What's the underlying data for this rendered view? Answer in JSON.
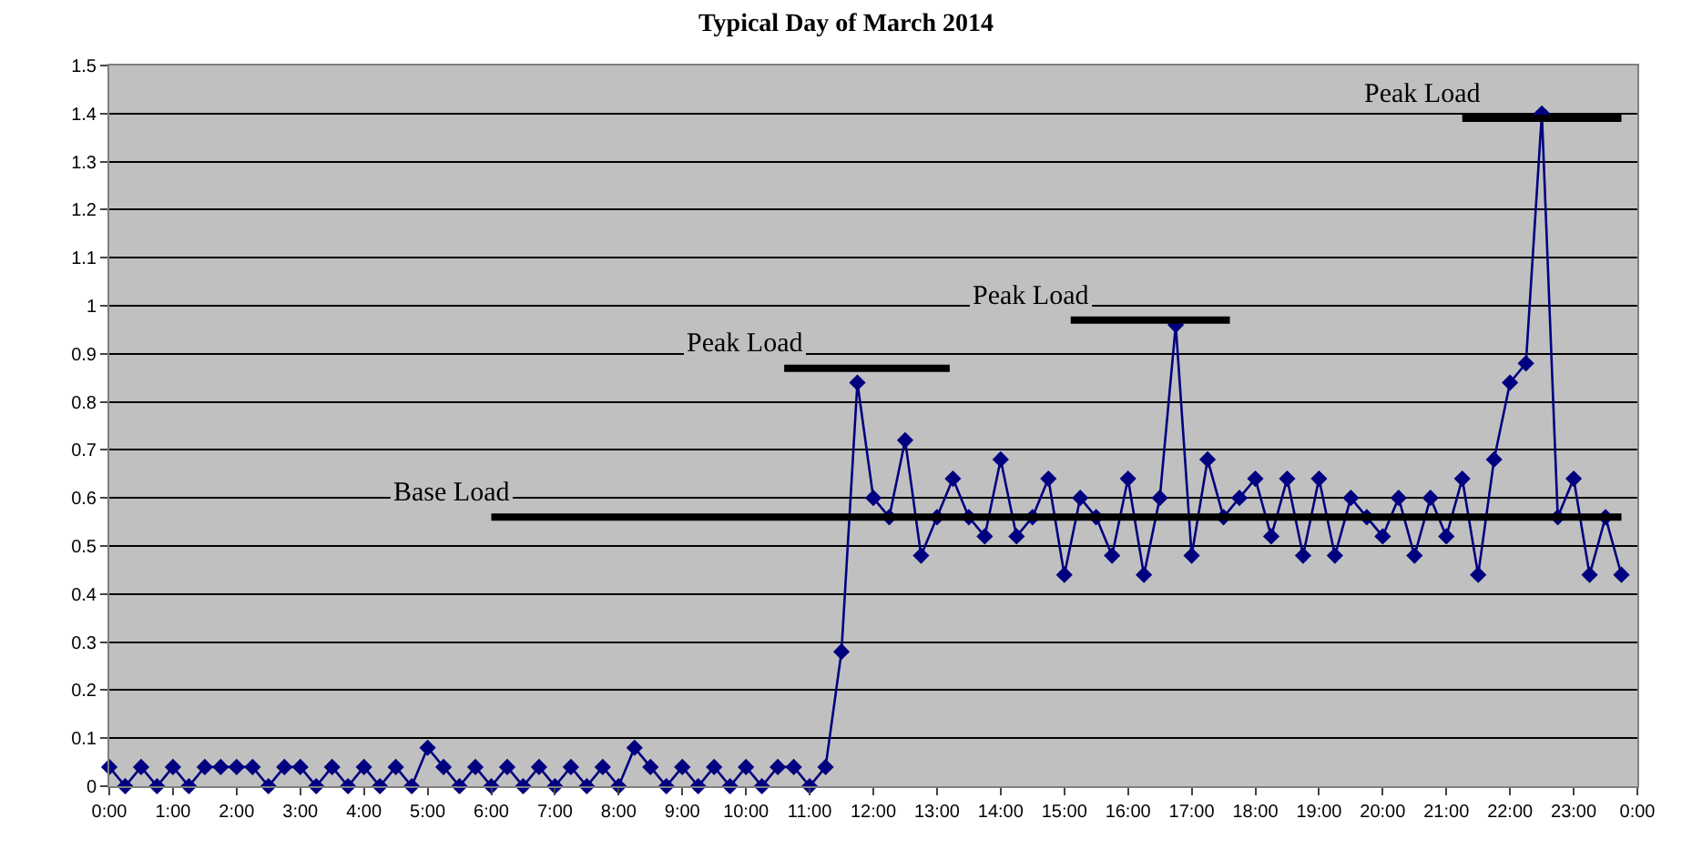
{
  "chart_data": {
    "type": "line",
    "title": "Typical Day of March 2014",
    "xlim": [
      0,
      24
    ],
    "ylim": [
      0,
      1.5
    ],
    "xticks": [
      {
        "value": 0,
        "label": "0:00"
      },
      {
        "value": 1,
        "label": "1:00"
      },
      {
        "value": 2,
        "label": "2:00"
      },
      {
        "value": 3,
        "label": "3:00"
      },
      {
        "value": 4,
        "label": "4:00"
      },
      {
        "value": 5,
        "label": "5:00"
      },
      {
        "value": 6,
        "label": "6:00"
      },
      {
        "value": 7,
        "label": "7:00"
      },
      {
        "value": 8,
        "label": "8:00"
      },
      {
        "value": 9,
        "label": "9:00"
      },
      {
        "value": 10,
        "label": "10:00"
      },
      {
        "value": 11,
        "label": "11:00"
      },
      {
        "value": 12,
        "label": "12:00"
      },
      {
        "value": 13,
        "label": "13:00"
      },
      {
        "value": 14,
        "label": "14:00"
      },
      {
        "value": 15,
        "label": "15:00"
      },
      {
        "value": 16,
        "label": "16:00"
      },
      {
        "value": 17,
        "label": "17:00"
      },
      {
        "value": 18,
        "label": "18:00"
      },
      {
        "value": 19,
        "label": "19:00"
      },
      {
        "value": 20,
        "label": "20:00"
      },
      {
        "value": 21,
        "label": "21:00"
      },
      {
        "value": 22,
        "label": "22:00"
      },
      {
        "value": 23,
        "label": "23:00"
      },
      {
        "value": 24,
        "label": "0:00"
      }
    ],
    "yticks": [
      0,
      0.1,
      0.2,
      0.3,
      0.4,
      0.5,
      0.6,
      0.7,
      0.8,
      0.9,
      1,
      1.1,
      1.2,
      1.3,
      1.4,
      1.5
    ],
    "grid": "y",
    "marker": "diamond",
    "line_style": "solid",
    "series": [
      {
        "color": "#000080",
        "x": [
          0,
          0.25,
          0.5,
          0.75,
          1,
          1.25,
          1.5,
          1.75,
          2,
          2.25,
          2.5,
          2.75,
          3,
          3.25,
          3.5,
          3.75,
          4,
          4.25,
          4.5,
          4.75,
          5,
          5.25,
          5.5,
          5.75,
          6,
          6.25,
          6.5,
          6.75,
          7,
          7.25,
          7.5,
          7.75,
          8,
          8.25,
          8.5,
          8.75,
          9,
          9.25,
          9.5,
          9.75,
          10,
          10.25,
          10.5,
          10.75,
          11,
          11.25,
          11.5,
          11.75,
          12,
          12.25,
          12.5,
          12.75,
          13,
          13.25,
          13.5,
          13.75,
          14,
          14.25,
          14.5,
          14.75,
          15,
          15.25,
          15.5,
          15.75,
          16,
          16.25,
          16.5,
          16.75,
          17,
          17.25,
          17.5,
          17.75,
          18,
          18.25,
          18.5,
          18.75,
          19,
          19.25,
          19.5,
          19.75,
          20,
          20.25,
          20.5,
          20.75,
          21,
          21.25,
          21.5,
          21.75,
          22,
          22.25,
          22.5,
          22.75,
          23,
          23.25,
          23.5,
          23.75
        ],
        "values": [
          0.04,
          0,
          0.04,
          0,
          0.04,
          0,
          0.04,
          0.04,
          0.04,
          0.04,
          0,
          0.04,
          0.04,
          0,
          0.04,
          0,
          0.04,
          0,
          0.04,
          0,
          0.08,
          0.04,
          0,
          0.04,
          0,
          0.04,
          0,
          0.04,
          0,
          0.04,
          0,
          0.04,
          0,
          0.08,
          0.04,
          0,
          0.04,
          0,
          0.04,
          0,
          0.04,
          0,
          0.04,
          0.04,
          0,
          0.04,
          0.28,
          0.84,
          0.6,
          0.56,
          0.72,
          0.48,
          0.56,
          0.64,
          0.56,
          0.52,
          0.68,
          0.52,
          0.56,
          0.64,
          0.44,
          0.6,
          0.56,
          0.48,
          0.64,
          0.44,
          0.6,
          0.96,
          0.48,
          0.68,
          0.56,
          0.6,
          0.64,
          0.52,
          0.64,
          0.48,
          0.64,
          0.48,
          0.6,
          0.56,
          0.52,
          0.6,
          0.48,
          0.6,
          0.52,
          0.64,
          0.44,
          0.68,
          0.84,
          0.88,
          1.4,
          0.56,
          0.64,
          0.44,
          0.56,
          0.44
        ]
      },
      {
        "type": "line",
        "marker": "none",
        "color": "#000000",
        "x": [
          6,
          23.75
        ],
        "values": [
          0.56,
          0.56
        ]
      },
      {
        "type": "line",
        "marker": "none",
        "color": "#000000",
        "x": [
          10.6,
          13.2
        ],
        "values": [
          0.87,
          0.87
        ]
      },
      {
        "type": "line",
        "marker": "none",
        "color": "#000000",
        "x": [
          15.1,
          17.6
        ],
        "values": [
          0.97,
          0.97
        ]
      },
      {
        "type": "line",
        "marker": "none",
        "color": "#000000",
        "x": [
          21.25,
          23.75
        ],
        "values": [
          1.39,
          1.39
        ]
      }
    ],
    "annotations": [
      {
        "text": "Base Load",
        "x": 6,
        "y": 0.56
      },
      {
        "text": "Peak Load",
        "x": 10.6,
        "y": 0.87
      },
      {
        "text": "Peak Load",
        "x": 15.1,
        "y": 0.97
      },
      {
        "text": "Peak Load",
        "x": 21.25,
        "y": 1.39
      }
    ]
  }
}
